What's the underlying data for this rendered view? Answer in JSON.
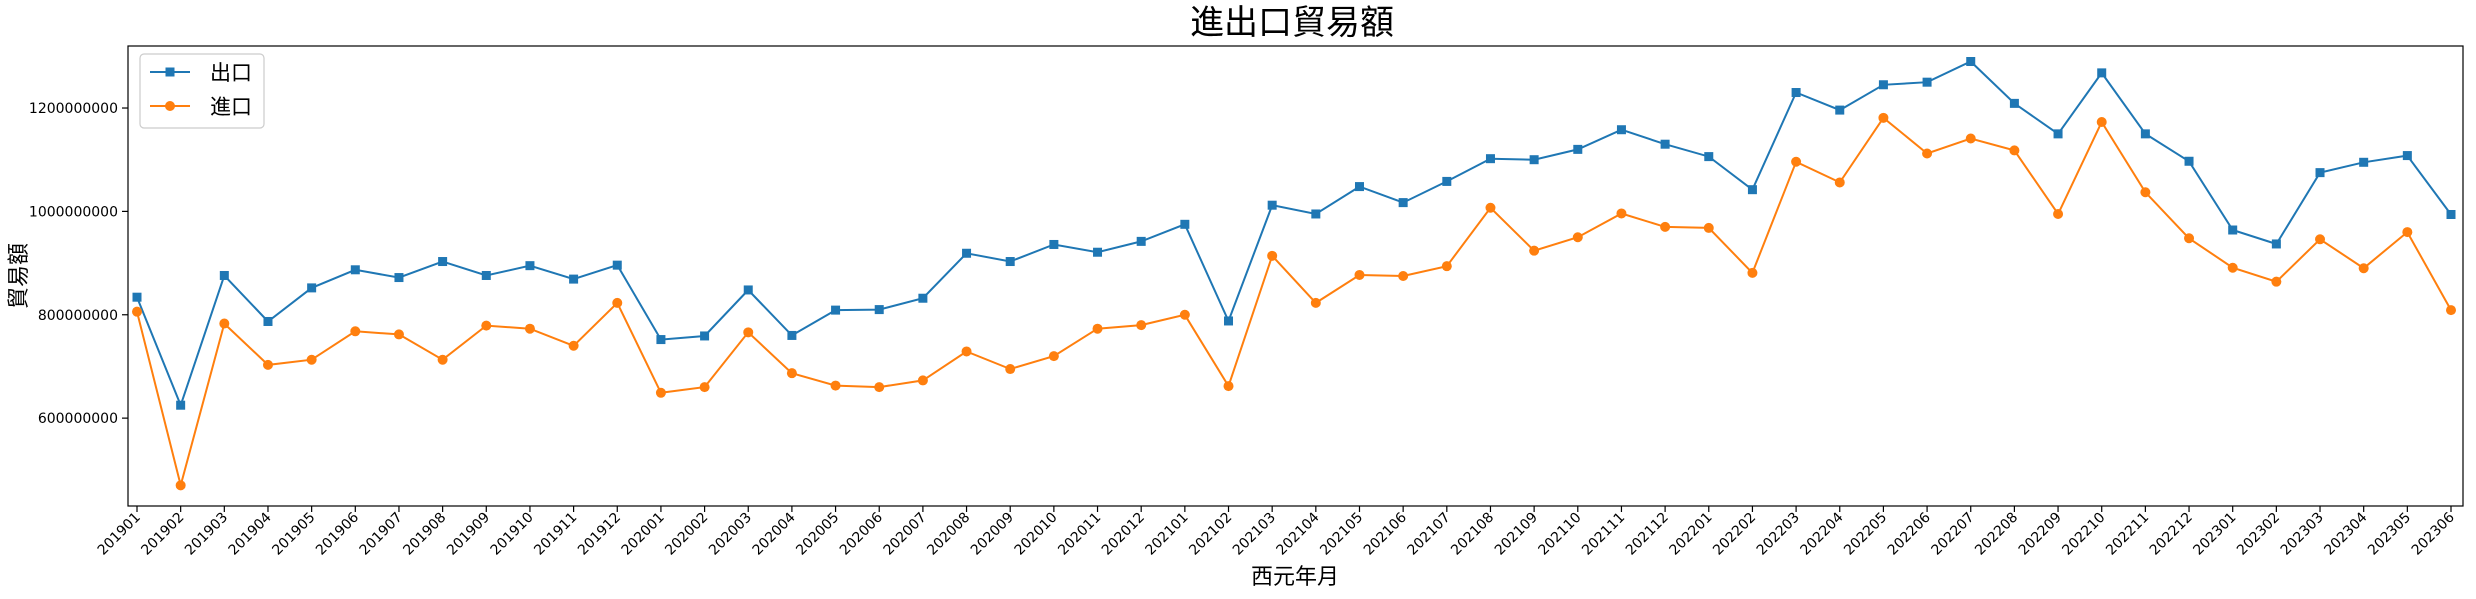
{
  "chart_data": {
    "type": "line",
    "title": "進出口貿易額",
    "xlabel": "西元年月",
    "ylabel": "貿易額",
    "ylim": [
      430000000,
      1320000000
    ],
    "yticks": [
      600000000,
      800000000,
      1000000000,
      1200000000
    ],
    "ytick_labels": [
      "600000000",
      "800000000",
      "1000000000",
      "1200000000"
    ],
    "grid": false,
    "legend_position": "top-left",
    "categories": [
      "201901",
      "201902",
      "201903",
      "201904",
      "201905",
      "201906",
      "201907",
      "201908",
      "201909",
      "201910",
      "201911",
      "201912",
      "202001",
      "202002",
      "202003",
      "202004",
      "202005",
      "202006",
      "202007",
      "202008",
      "202009",
      "202010",
      "202011",
      "202012",
      "202101",
      "202102",
      "202103",
      "202104",
      "202105",
      "202106",
      "202107",
      "202108",
      "202109",
      "202110",
      "202111",
      "202112",
      "202201",
      "202202",
      "202203",
      "202204",
      "202205",
      "202206",
      "202207",
      "202208",
      "202209",
      "202210",
      "202211",
      "202212",
      "202301",
      "202302",
      "202303",
      "202304",
      "202305",
      "202306"
    ],
    "series": [
      {
        "name": "出口",
        "color": "#1f77b4",
        "marker": "square",
        "values": [
          834000000,
          625000000,
          876000000,
          787000000,
          852000000,
          887000000,
          872000000,
          903000000,
          876000000,
          895000000,
          869000000,
          896000000,
          752000000,
          759000000,
          848000000,
          760000000,
          809000000,
          810000000,
          832000000,
          919000000,
          903000000,
          936000000,
          921000000,
          942000000,
          975000000,
          788000000,
          1012000000,
          995000000,
          1048000000,
          1017000000,
          1058000000,
          1102000000,
          1100000000,
          1120000000,
          1158000000,
          1130000000,
          1106000000,
          1042000000,
          1230000000,
          1196000000,
          1245000000,
          1250000000,
          1290000000,
          1209000000,
          1150000000,
          1268000000,
          1150000000,
          1097000000,
          964000000,
          937000000,
          1075000000,
          1095000000,
          1108000000,
          994000000
        ]
      },
      {
        "name": "進口",
        "color": "#ff7f0e",
        "marker": "circle",
        "values": [
          806000000,
          470000000,
          783000000,
          703000000,
          713000000,
          768000000,
          762000000,
          713000000,
          779000000,
          773000000,
          740000000,
          823000000,
          649000000,
          660000000,
          766000000,
          687000000,
          663000000,
          660000000,
          673000000,
          729000000,
          695000000,
          720000000,
          773000000,
          780000000,
          800000000,
          662000000,
          914000000,
          823000000,
          877000000,
          875000000,
          894000000,
          1007000000,
          924000000,
          950000000,
          996000000,
          970000000,
          968000000,
          881000000,
          1096000000,
          1056000000,
          1181000000,
          1112000000,
          1141000000,
          1118000000,
          995000000,
          1173000000,
          1037000000,
          948000000,
          891000000,
          864000000,
          946000000,
          890000000,
          960000000,
          809000000
        ]
      }
    ]
  }
}
